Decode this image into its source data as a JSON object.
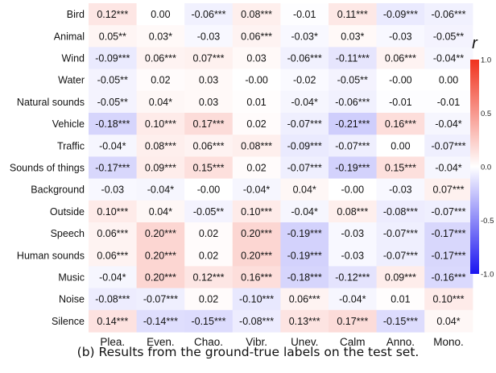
{
  "caption": "(b) Results from the ground-true labels on the test set.",
  "chart_data": {
    "type": "heatmap",
    "rows": [
      "Bird",
      "Animal",
      "Wind",
      "Water",
      "Natural sounds",
      "Vehicle",
      "Traffic",
      "Sounds of things",
      "Background",
      "Outside",
      "Speech",
      "Human sounds",
      "Music",
      "Noise",
      "Silence"
    ],
    "columns": [
      "Plea.",
      "Even.",
      "Chao.",
      "Vibr.",
      "Unev.",
      "Calm",
      "Anno.",
      "Mono."
    ],
    "labels": [
      [
        "0.12***",
        "0.00",
        "-0.06***",
        "0.08***",
        "-0.01",
        "0.11***",
        "-0.09***",
        "-0.06***"
      ],
      [
        "0.05**",
        "0.03*",
        "-0.03",
        "0.06***",
        "-0.03*",
        "0.03*",
        "-0.03",
        "-0.05**"
      ],
      [
        "-0.09***",
        "0.06***",
        "0.07***",
        "0.03",
        "-0.06***",
        "-0.11***",
        "0.06***",
        "-0.04**"
      ],
      [
        "-0.05**",
        "0.02",
        "0.03",
        "-0.00",
        "-0.02",
        "-0.05**",
        "-0.00",
        "0.00"
      ],
      [
        "-0.05**",
        "0.04*",
        "0.03",
        "0.01",
        "-0.04*",
        "-0.06***",
        "-0.01",
        "-0.01"
      ],
      [
        "-0.18***",
        "0.10***",
        "0.17***",
        "0.02",
        "-0.07***",
        "-0.21***",
        "0.16***",
        "-0.04*"
      ],
      [
        "-0.04*",
        "0.08***",
        "0.06***",
        "0.08***",
        "-0.09***",
        "-0.07***",
        "0.00",
        "-0.07***"
      ],
      [
        "-0.17***",
        "0.09***",
        "0.15***",
        "0.02",
        "-0.07***",
        "-0.19***",
        "0.15***",
        "-0.04*"
      ],
      [
        "-0.03",
        "-0.04*",
        "-0.00",
        "-0.04*",
        "0.04*",
        "-0.00",
        "-0.03",
        "0.07***"
      ],
      [
        "0.10***",
        "0.04*",
        "-0.05**",
        "0.10***",
        "-0.04*",
        "0.08***",
        "-0.08***",
        "-0.07***"
      ],
      [
        "0.06***",
        "0.20***",
        "0.02",
        "0.20***",
        "-0.19***",
        "-0.03",
        "-0.07***",
        "-0.17***"
      ],
      [
        "0.06***",
        "0.20***",
        "0.02",
        "0.20***",
        "-0.19***",
        "-0.03",
        "-0.07***",
        "-0.17***"
      ],
      [
        "-0.04*",
        "0.20***",
        "0.12***",
        "0.16***",
        "-0.18***",
        "-0.12***",
        "0.09***",
        "-0.16***"
      ],
      [
        "-0.08***",
        "-0.07***",
        "0.02",
        "-0.10***",
        "0.06***",
        "-0.04*",
        "0.01",
        "0.10***"
      ],
      [
        "0.14***",
        "-0.14***",
        "-0.15***",
        "-0.08***",
        "0.13***",
        "0.17***",
        "-0.15***",
        "0.04*"
      ]
    ],
    "colorbar": {
      "label": "r",
      "min": -1.0,
      "max": 1.0,
      "ticks": [
        "1.0",
        "0.5",
        "0.0",
        "-0.5",
        "-1.0"
      ],
      "colors": {
        "negative": "#1a14f0",
        "zero": "#ffffff",
        "positive": "#f0321e"
      }
    }
  }
}
